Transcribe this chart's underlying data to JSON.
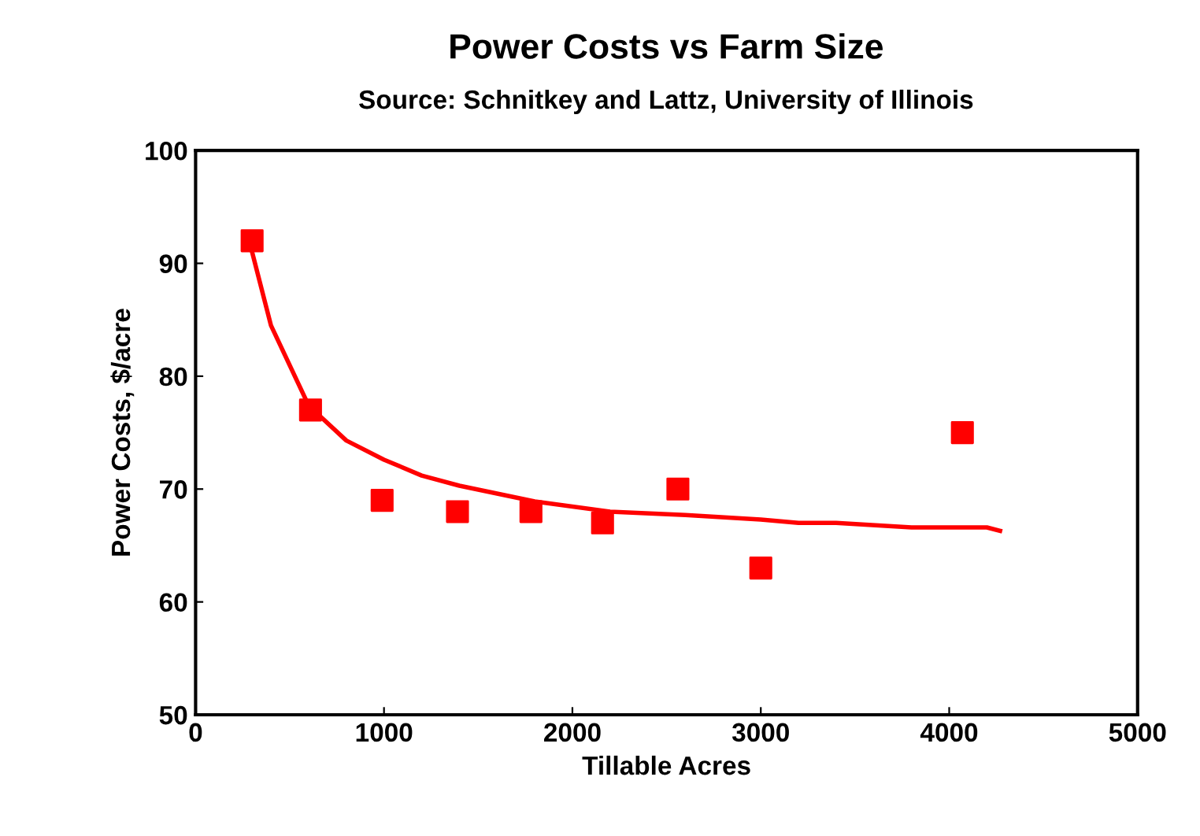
{
  "chart_data": {
    "type": "scatter",
    "title": "Power Costs vs Farm Size",
    "subtitle": "Source: Schnitkey and Lattz, University of Illinois",
    "xlabel": "Tillable Acres",
    "ylabel": "Power Costs, $/acre",
    "xlim": [
      0,
      5000
    ],
    "xticks": [
      0,
      1000,
      2000,
      3000,
      4000,
      5000
    ],
    "ylim": [
      50,
      100
    ],
    "yticks": [
      50,
      60,
      70,
      80,
      90,
      100
    ],
    "grid": false,
    "legend": false,
    "series": [
      {
        "color": "#ff0000",
        "marker": "square",
        "x": [
          300,
          610,
          990,
          1390,
          1780,
          2160,
          2560,
          3000,
          4070
        ],
        "values": [
          92,
          77,
          69,
          68,
          68,
          67,
          70,
          63,
          75
        ]
      },
      {
        "type": "line",
        "color": "#ff0000",
        "marker": "none",
        "line_style": "solid",
        "x": [
          300,
          400,
          600,
          800,
          1000,
          1200,
          1400,
          1800,
          2200,
          2600,
          3000,
          3200,
          3400,
          3800,
          4200,
          4270
        ],
        "values": [
          91,
          84.5,
          77.4,
          74.3,
          72.6,
          71.2,
          70.3,
          68.9,
          68,
          67.7,
          67.3,
          67,
          67,
          66.6,
          66.6,
          66.3
        ]
      }
    ]
  }
}
